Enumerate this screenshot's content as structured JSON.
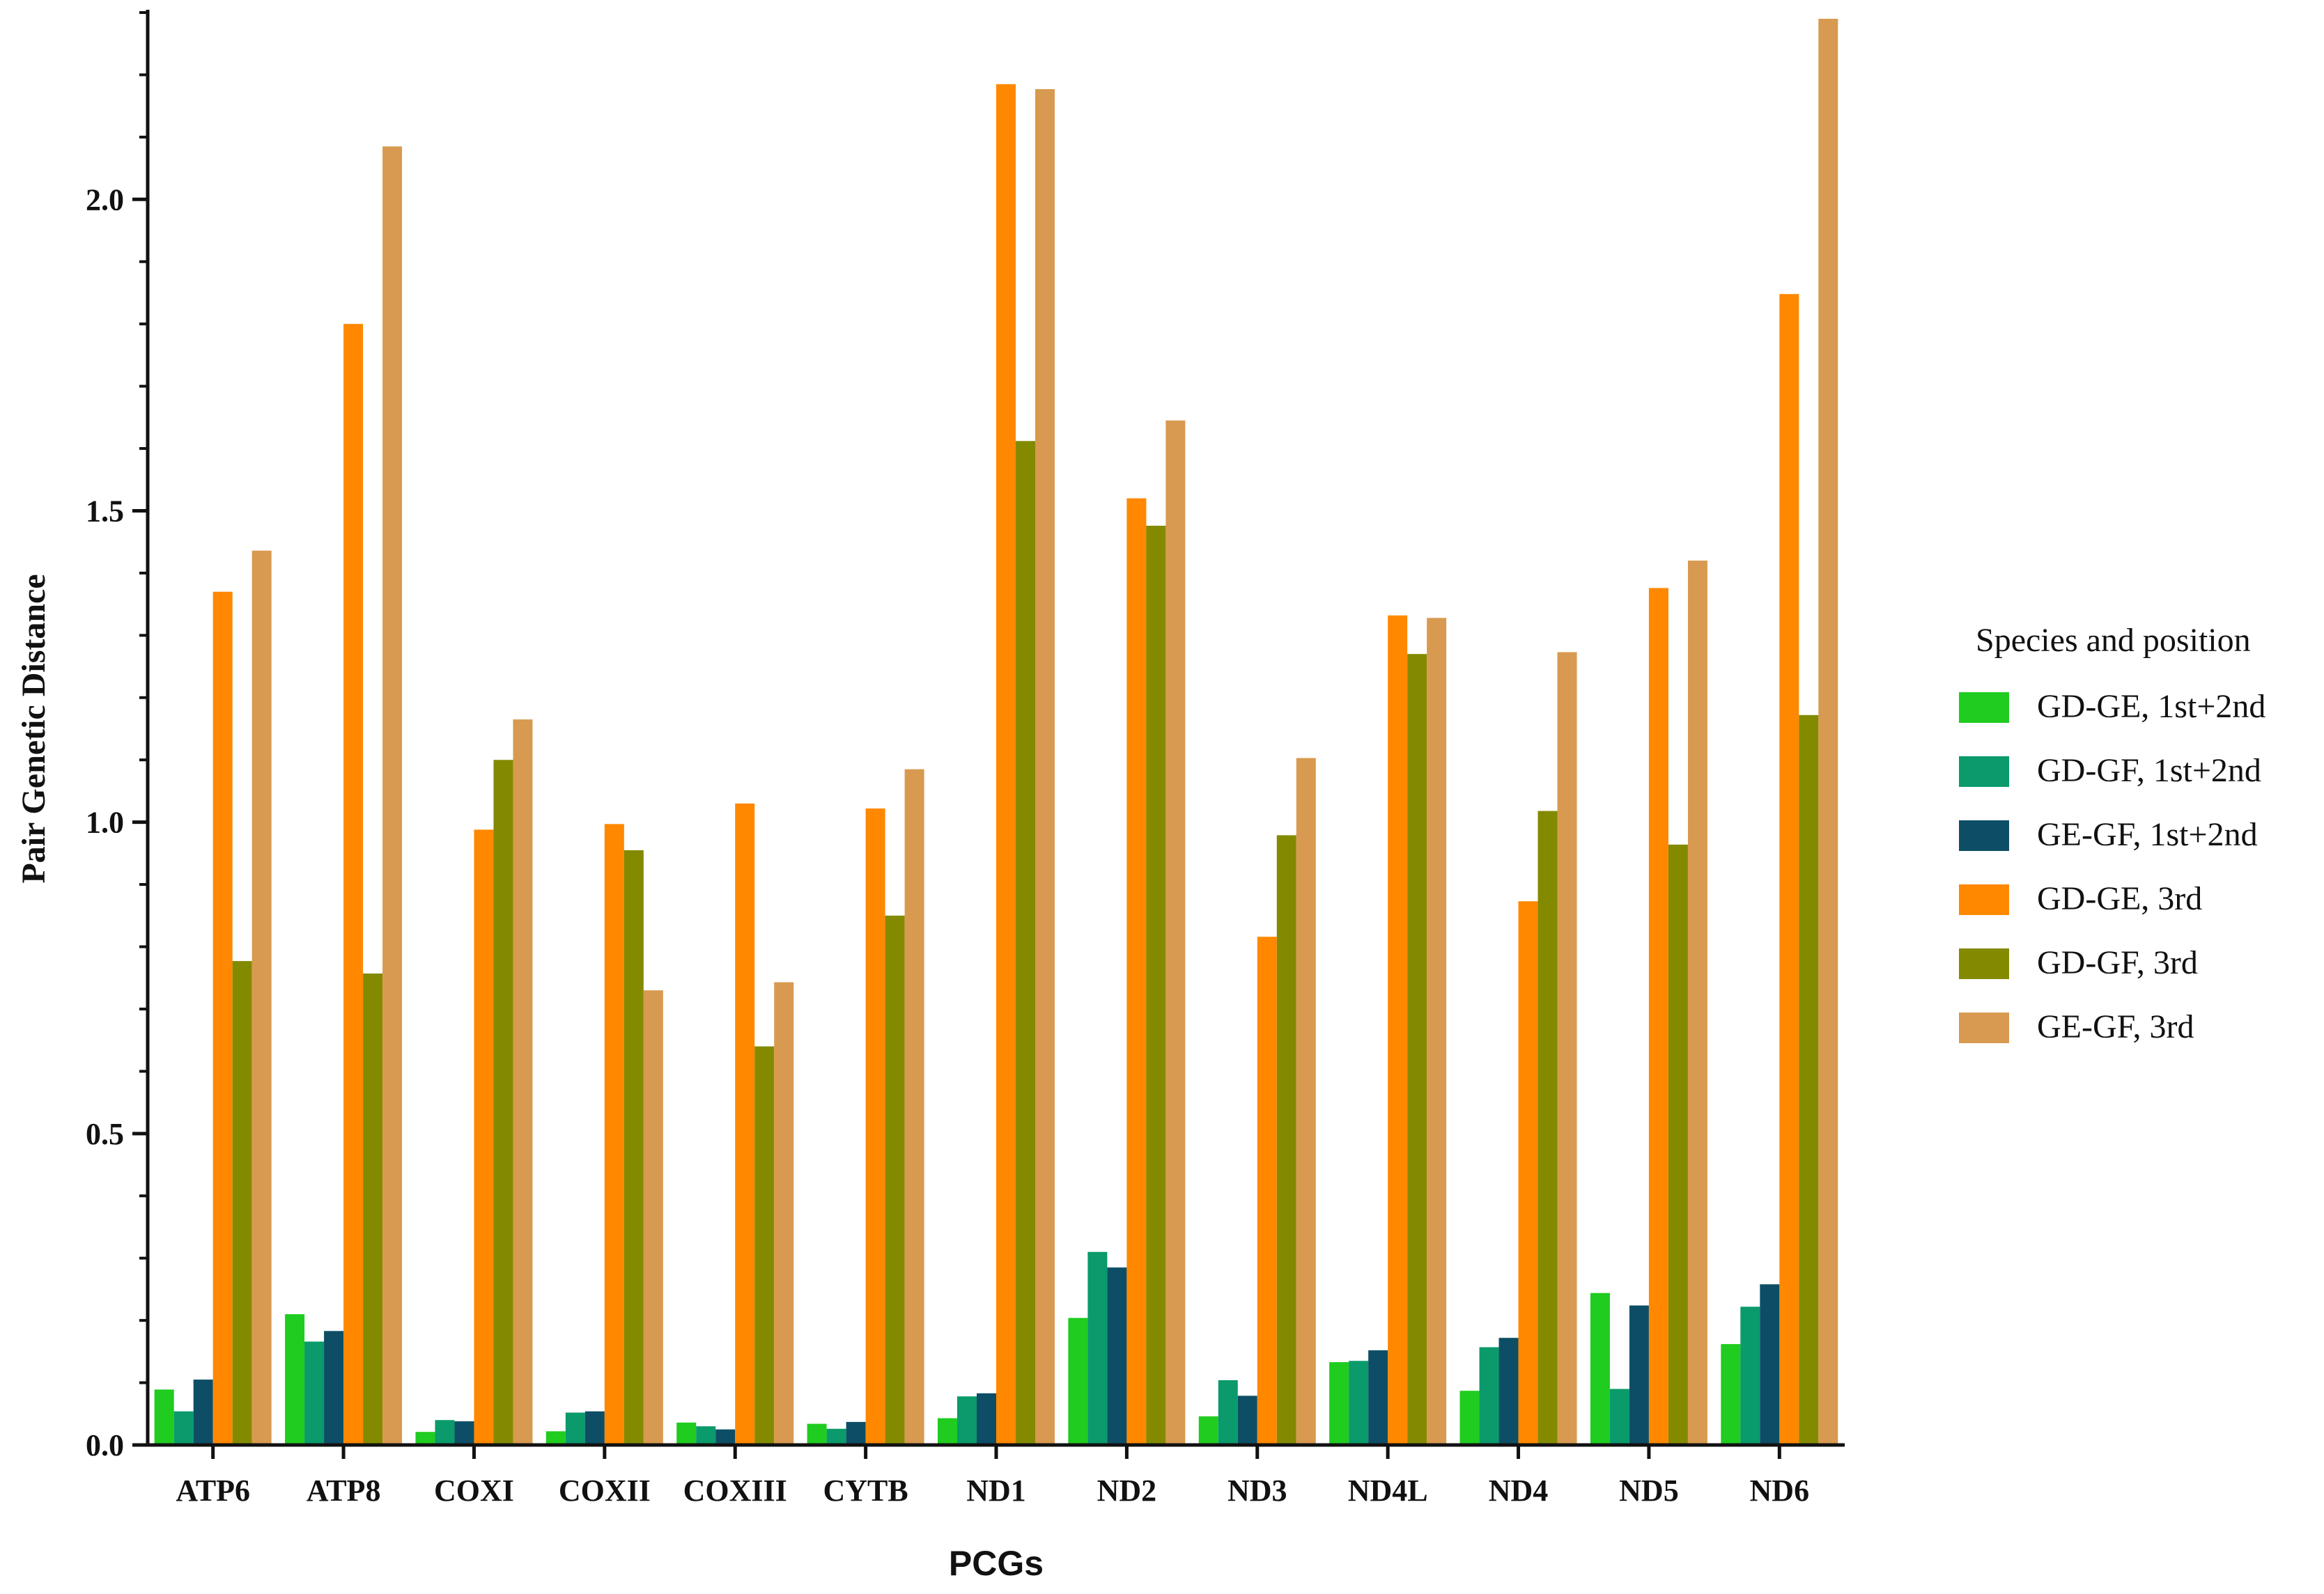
{
  "chart_data": {
    "type": "bar",
    "xlabel": "PCGs",
    "ylabel": "Pair Genetic Distance",
    "ylim": [
      0,
      2.3
    ],
    "yticks": [
      0.0,
      0.5,
      1.0,
      1.5,
      2.0
    ],
    "ytick_labels": [
      "0.0",
      "0.5",
      "1.0",
      "1.5",
      "2.0"
    ],
    "grid": false,
    "legend": {
      "title": "Species and position",
      "placement": "right"
    },
    "categories": [
      "ATP6",
      "ATP8",
      "COXI",
      "COXII",
      "COXIII",
      "CYTB",
      "ND1",
      "ND2",
      "ND3",
      "ND4L",
      "ND4",
      "ND5",
      "ND6"
    ],
    "series": [
      {
        "name": "GD-GE, 1st+2nd",
        "color": "#1fcc1f",
        "values": [
          0.089,
          0.21,
          0.021,
          0.022,
          0.036,
          0.034,
          0.043,
          0.204,
          0.046,
          0.133,
          0.087,
          0.244,
          0.162
        ]
      },
      {
        "name": "GD-GF, 1st+2nd",
        "color": "#0a9a6c",
        "values": [
          0.054,
          0.166,
          0.04,
          0.052,
          0.03,
          0.026,
          0.078,
          0.31,
          0.104,
          0.135,
          0.157,
          0.09,
          0.222
        ]
      },
      {
        "name": "GE-GF, 1st+2nd",
        "color": "#0d4e66",
        "values": [
          0.105,
          0.183,
          0.038,
          0.054,
          0.025,
          0.037,
          0.083,
          0.285,
          0.079,
          0.152,
          0.172,
          0.224,
          0.258
        ]
      },
      {
        "name": "GD-GE, 3rd",
        "color": "#ff8800",
        "values": [
          1.37,
          1.8,
          0.988,
          0.997,
          1.03,
          1.022,
          2.185,
          1.52,
          0.816,
          1.332,
          0.873,
          1.376,
          1.848
        ]
      },
      {
        "name": "GD-GF, 3rd",
        "color": "#838a00",
        "values": [
          0.777,
          0.757,
          1.1,
          0.955,
          0.64,
          0.85,
          1.612,
          1.476,
          0.979,
          1.27,
          1.018,
          0.964,
          1.172
        ]
      },
      {
        "name": "GE-GF, 3rd",
        "color": "#d89a50",
        "values": [
          1.436,
          2.085,
          1.165,
          0.73,
          0.743,
          1.085,
          2.177,
          1.645,
          1.103,
          1.328,
          1.273,
          1.42,
          2.29
        ]
      }
    ]
  }
}
